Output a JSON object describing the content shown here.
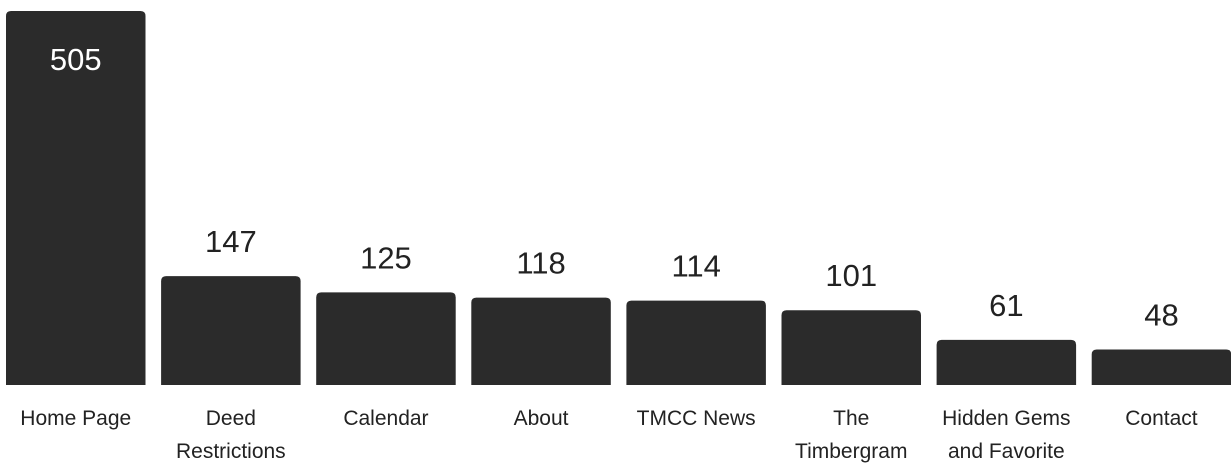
{
  "colors": {
    "bar": "#2b2b2b",
    "label_inside": "#ffffff",
    "label_outside": "#222222",
    "category_text": "#222222",
    "background": "#ffffff"
  },
  "chart_data": {
    "type": "bar",
    "title": "",
    "xlabel": "",
    "ylabel": "",
    "grid": false,
    "legend": "none",
    "ylim": [
      0,
      505
    ],
    "categories": [
      [
        "Home Page"
      ],
      [
        "Deed",
        "Restrictions"
      ],
      [
        "Calendar"
      ],
      [
        "About"
      ],
      [
        "TMCC News"
      ],
      [
        "The",
        "Timbergram"
      ],
      [
        "Hidden Gems",
        "and Favorite"
      ],
      [
        "Contact"
      ]
    ],
    "values": [
      505,
      147,
      125,
      118,
      114,
      101,
      61,
      48
    ],
    "value_labels": [
      "505",
      "147",
      "125",
      "118",
      "114",
      "101",
      "61",
      "48"
    ]
  }
}
